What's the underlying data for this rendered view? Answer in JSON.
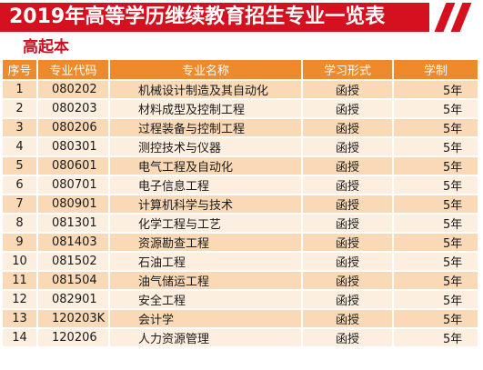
{
  "title": "2019年高等学历继续教育招生专业一览表",
  "subtitle": "高起本",
  "colors": {
    "banner": "#d6111f",
    "header": "#ee8a2c",
    "row_dark": "#fad9b6",
    "row_light": "#fdefdf",
    "subtitle": "#cc1020"
  },
  "table": {
    "headers": [
      "序号",
      "专业代码",
      "专业名称",
      "学习形式",
      "学制"
    ],
    "rows": [
      {
        "no": "1",
        "code": "080202",
        "name": "机械设计制造及其自动化",
        "mode": "函授",
        "length": "5年"
      },
      {
        "no": "2",
        "code": "080203",
        "name": "材料成型及控制工程",
        "mode": "函授",
        "length": "5年"
      },
      {
        "no": "3",
        "code": "080206",
        "name": "过程装备与控制工程",
        "mode": "函授",
        "length": "5年"
      },
      {
        "no": "4",
        "code": "080301",
        "name": "测控技术与仪器",
        "mode": "函授",
        "length": "5年"
      },
      {
        "no": "5",
        "code": "080601",
        "name": "电气工程及自动化",
        "mode": "函授",
        "length": "5年"
      },
      {
        "no": "6",
        "code": "080701",
        "name": "电子信息工程",
        "mode": "函授",
        "length": "5年"
      },
      {
        "no": "7",
        "code": "080901",
        "name": "计算机科学与技术",
        "mode": "函授",
        "length": "5年"
      },
      {
        "no": "8",
        "code": "081301",
        "name": "化学工程与工艺",
        "mode": "函授",
        "length": "5年"
      },
      {
        "no": "9",
        "code": "081403",
        "name": "资源勘查工程",
        "mode": "函授",
        "length": "5年"
      },
      {
        "no": "10",
        "code": "081502",
        "name": "石油工程",
        "mode": "函授",
        "length": "5年"
      },
      {
        "no": "11",
        "code": "081504",
        "name": "油气储运工程",
        "mode": "函授",
        "length": "5年"
      },
      {
        "no": "12",
        "code": "082901",
        "name": "安全工程",
        "mode": "函授",
        "length": "5年"
      },
      {
        "no": "13",
        "code": "120203K",
        "name": "会计学",
        "mode": "函授",
        "length": "5年"
      },
      {
        "no": "14",
        "code": "120206",
        "name": "人力资源管理",
        "mode": "函授",
        "length": "5年"
      }
    ]
  }
}
